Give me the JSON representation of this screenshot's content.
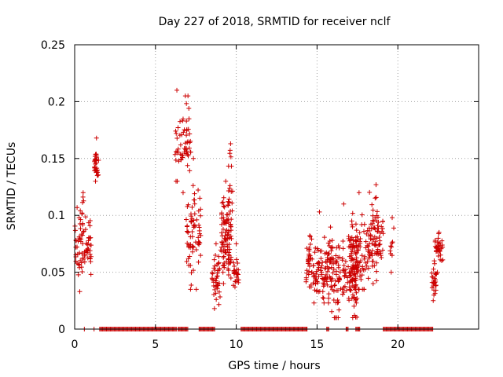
{
  "chart_data": {
    "type": "scatter",
    "title": "Day 227 of 2018, SRMTID for receiver nclf",
    "xlabel": "GPS time / hours",
    "ylabel": "SRMTID / TECUs",
    "xlim": [
      0,
      25
    ],
    "ylim": [
      0,
      0.25
    ],
    "xticks": [
      0,
      5,
      10,
      15,
      20
    ],
    "yticks": [
      0,
      0.05,
      0.1,
      0.15,
      0.2,
      0.25
    ],
    "xtick_labels": [
      "0",
      "5",
      "10",
      "15",
      "20"
    ],
    "ytick_labels": [
      "0",
      "0.05",
      "0.1",
      "0.15",
      "0.2",
      "0.25"
    ],
    "grid": true,
    "legend": "none",
    "marker": "+",
    "color": "#cc0000",
    "clusters": [
      {
        "x_start": 0.0,
        "x_end": 1.05,
        "y_min": 0.033,
        "y_max": 0.12,
        "y_mean": 0.075,
        "n": 80
      },
      {
        "x_start": 1.2,
        "x_end": 1.5,
        "y_min": 0.13,
        "y_max": 0.168,
        "y_mean": 0.145,
        "n": 30
      },
      {
        "x_start": 6.2,
        "x_end": 6.45,
        "y_min": 0.13,
        "y_max": 0.21,
        "y_mean": 0.165,
        "n": 12
      },
      {
        "x_start": 6.5,
        "x_end": 7.2,
        "y_min": 0.12,
        "y_max": 0.205,
        "y_mean": 0.165,
        "n": 45
      },
      {
        "x_start": 6.9,
        "x_end": 7.8,
        "y_min": 0.035,
        "y_max": 0.15,
        "y_mean": 0.085,
        "n": 70
      },
      {
        "x_start": 8.5,
        "x_end": 9.0,
        "y_min": 0.018,
        "y_max": 0.075,
        "y_mean": 0.045,
        "n": 40
      },
      {
        "x_start": 9.0,
        "x_end": 9.7,
        "y_min": 0.04,
        "y_max": 0.13,
        "y_mean": 0.08,
        "n": 90
      },
      {
        "x_start": 9.5,
        "x_end": 9.8,
        "y_min": 0.07,
        "y_max": 0.163,
        "y_mean": 0.12,
        "n": 20
      },
      {
        "x_start": 9.8,
        "x_end": 10.2,
        "y_min": 0.037,
        "y_max": 0.075,
        "y_mean": 0.05,
        "n": 25
      },
      {
        "x_start": 14.3,
        "x_end": 16.0,
        "y_min": 0.023,
        "y_max": 0.103,
        "y_mean": 0.055,
        "n": 130
      },
      {
        "x_start": 15.8,
        "x_end": 17.5,
        "y_min": 0.01,
        "y_max": 0.11,
        "y_mean": 0.05,
        "n": 140
      },
      {
        "x_start": 17.0,
        "x_end": 18.2,
        "y_min": 0.035,
        "y_max": 0.12,
        "y_mean": 0.065,
        "n": 100
      },
      {
        "x_start": 18.2,
        "x_end": 19.1,
        "y_min": 0.04,
        "y_max": 0.127,
        "y_mean": 0.08,
        "n": 80
      },
      {
        "x_start": 19.5,
        "x_end": 19.8,
        "y_min": 0.05,
        "y_max": 0.098,
        "y_mean": 0.075,
        "n": 8
      },
      {
        "x_start": 22.1,
        "x_end": 22.4,
        "y_min": 0.025,
        "y_max": 0.06,
        "y_mean": 0.042,
        "n": 25
      },
      {
        "x_start": 22.3,
        "x_end": 22.8,
        "y_min": 0.05,
        "y_max": 0.085,
        "y_mean": 0.07,
        "n": 35
      }
    ],
    "zero_markers": {
      "y": 0,
      "points": [
        0.6,
        1.2
      ],
      "segments": [
        [
          1.55,
          6.3
        ],
        [
          6.4,
          7.0
        ],
        [
          7.7,
          8.7
        ],
        [
          10.3,
          14.4
        ],
        [
          15.6,
          15.75
        ],
        [
          16.8,
          16.95
        ],
        [
          17.4,
          17.65
        ],
        [
          19.1,
          22.2
        ]
      ],
      "step": 0.06
    }
  }
}
